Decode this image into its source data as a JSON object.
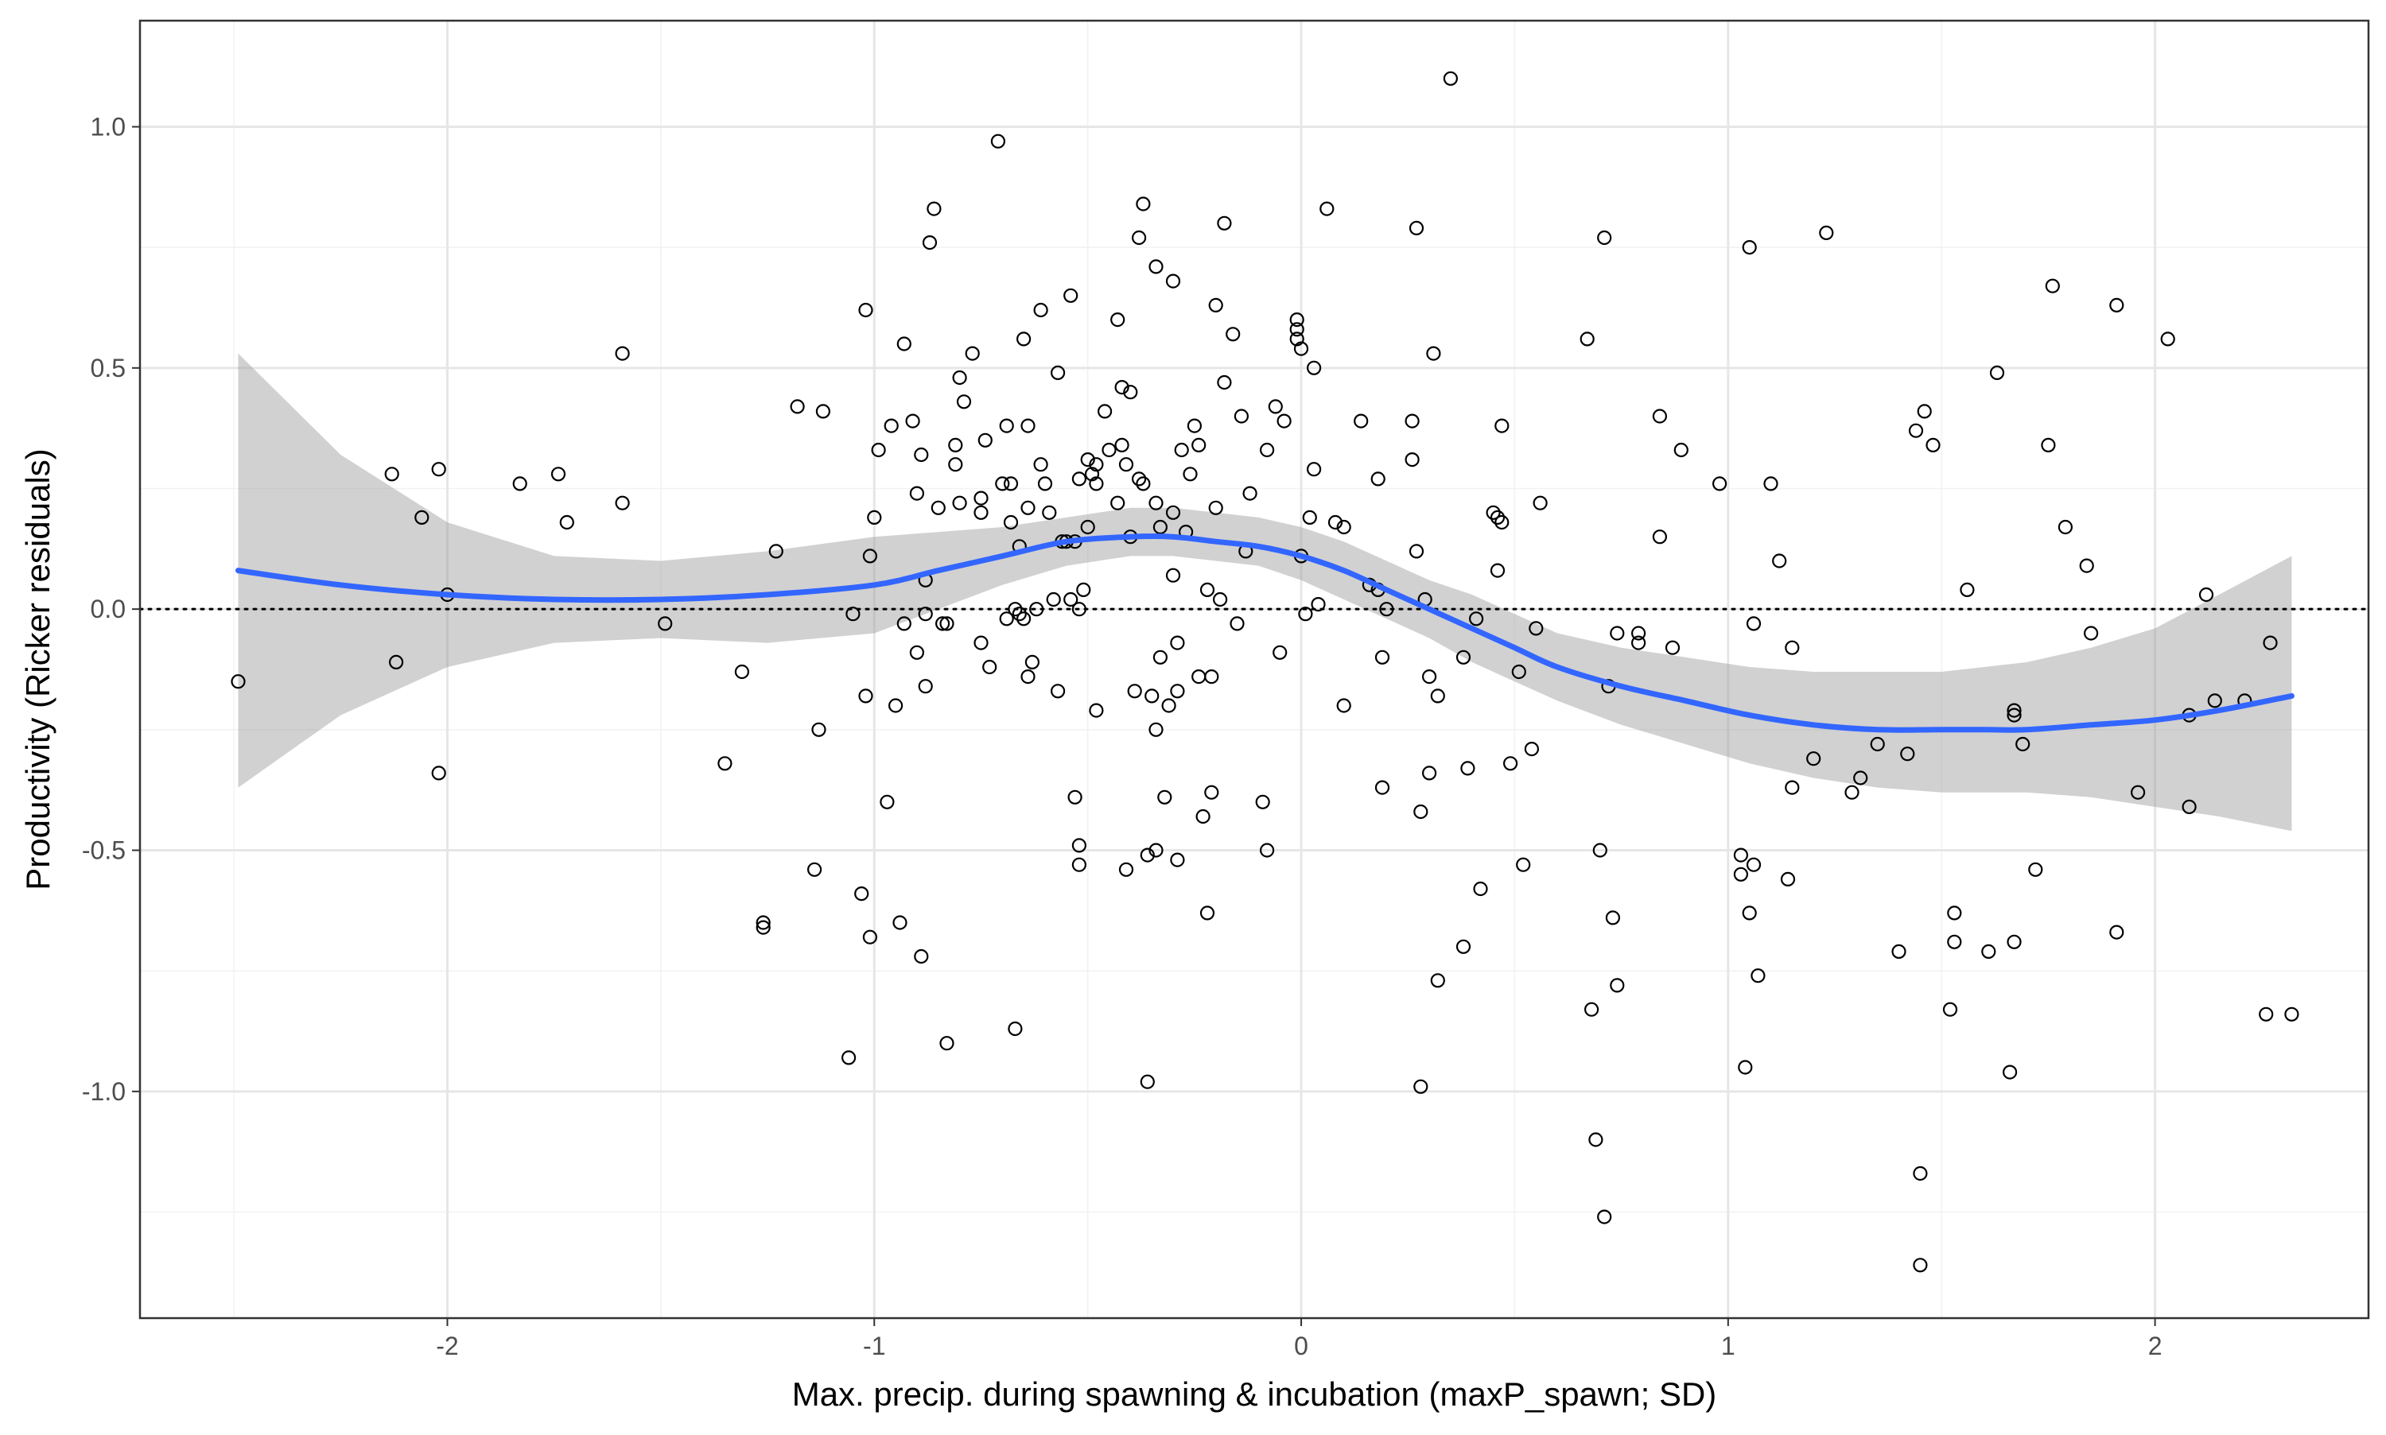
{
  "chart_data": {
    "type": "scatter",
    "title": "",
    "xlabel": "Max. precip. during spawning & incubation (maxP_spawn; SD)",
    "ylabel": "Productivity (Ricker residuals)",
    "xlim": [
      -2.72,
      2.5
    ],
    "ylim": [
      -1.47,
      1.22
    ],
    "x_ticks": [
      -2,
      -1,
      0,
      1,
      2
    ],
    "x_tick_labels": [
      "-2",
      "-1",
      "0",
      "1",
      "2"
    ],
    "y_ticks": [
      -1.0,
      -0.5,
      0.0,
      0.5,
      1.0
    ],
    "y_tick_labels": [
      "-1.0",
      "-0.5",
      "0.0",
      "0.5",
      "1.0"
    ],
    "grid": true,
    "reference_line": {
      "y": 0,
      "style": "dotted"
    },
    "colors": {
      "points": "#000000",
      "smooth_line": "#3366FF",
      "ribbon": "#999999",
      "grid": "#e6e6e6"
    },
    "points": [
      [
        -2.49,
        -0.15
      ],
      [
        -2.13,
        0.28
      ],
      [
        -2.12,
        -0.11
      ],
      [
        -2.06,
        0.19
      ],
      [
        -2.02,
        0.29
      ],
      [
        -2.02,
        -0.34
      ],
      [
        -2.0,
        0.03
      ],
      [
        -1.83,
        0.26
      ],
      [
        -1.74,
        0.28
      ],
      [
        -1.72,
        0.18
      ],
      [
        -1.59,
        0.53
      ],
      [
        -1.59,
        0.22
      ],
      [
        -1.49,
        -0.03
      ],
      [
        -1.35,
        -0.32
      ],
      [
        -1.31,
        -0.13
      ],
      [
        -1.26,
        -0.65
      ],
      [
        -1.26,
        -0.66
      ],
      [
        -1.23,
        0.12
      ],
      [
        -1.18,
        0.42
      ],
      [
        -1.14,
        -0.54
      ],
      [
        -1.13,
        -0.25
      ],
      [
        -1.12,
        0.41
      ],
      [
        -1.06,
        -0.93
      ],
      [
        -1.05,
        -0.01
      ],
      [
        -1.03,
        -0.59
      ],
      [
        -1.02,
        -0.18
      ],
      [
        -1.02,
        0.62
      ],
      [
        -1.01,
        0.11
      ],
      [
        -1.01,
        -0.68
      ],
      [
        -1.0,
        0.19
      ],
      [
        -0.99,
        0.33
      ],
      [
        -0.97,
        -0.4
      ],
      [
        -0.96,
        0.38
      ],
      [
        -0.95,
        -0.2
      ],
      [
        -0.94,
        -0.65
      ],
      [
        -0.93,
        0.55
      ],
      [
        -0.93,
        -0.03
      ],
      [
        -0.91,
        0.39
      ],
      [
        -0.9,
        0.24
      ],
      [
        -0.9,
        -0.09
      ],
      [
        -0.89,
        0.32
      ],
      [
        -0.89,
        -0.72
      ],
      [
        -0.88,
        0.06
      ],
      [
        -0.88,
        -0.16
      ],
      [
        -0.88,
        -0.01
      ],
      [
        -0.87,
        0.76
      ],
      [
        -0.86,
        0.83
      ],
      [
        -0.85,
        0.21
      ],
      [
        -0.84,
        -0.03
      ],
      [
        -0.83,
        -0.9
      ],
      [
        -0.83,
        -0.03
      ],
      [
        -0.81,
        0.3
      ],
      [
        -0.81,
        0.34
      ],
      [
        -0.8,
        0.22
      ],
      [
        -0.8,
        0.48
      ],
      [
        -0.79,
        0.43
      ],
      [
        -0.77,
        0.53
      ],
      [
        -0.75,
        0.2
      ],
      [
        -0.75,
        0.23
      ],
      [
        -0.75,
        -0.07
      ],
      [
        -0.74,
        0.35
      ],
      [
        -0.73,
        -0.12
      ],
      [
        -0.71,
        0.97
      ],
      [
        -0.7,
        0.26
      ],
      [
        -0.69,
        0.38
      ],
      [
        -0.69,
        -0.02
      ],
      [
        -0.68,
        0.18
      ],
      [
        -0.68,
        0.26
      ],
      [
        -0.67,
        -0.0
      ],
      [
        -0.67,
        -0.87
      ],
      [
        -0.66,
        -0.01
      ],
      [
        -0.66,
        0.13
      ],
      [
        -0.65,
        -0.02
      ],
      [
        -0.65,
        0.56
      ],
      [
        -0.64,
        0.21
      ],
      [
        -0.64,
        0.38
      ],
      [
        -0.64,
        -0.14
      ],
      [
        -0.63,
        -0.11
      ],
      [
        -0.62,
        0.0
      ],
      [
        -0.61,
        0.3
      ],
      [
        -0.61,
        0.62
      ],
      [
        -0.6,
        0.26
      ],
      [
        -0.59,
        0.2
      ],
      [
        -0.58,
        0.02
      ],
      [
        -0.57,
        -0.17
      ],
      [
        -0.57,
        0.49
      ],
      [
        -0.56,
        0.14
      ],
      [
        -0.55,
        0.14
      ],
      [
        -0.54,
        0.02
      ],
      [
        -0.54,
        0.65
      ],
      [
        -0.53,
        0.14
      ],
      [
        -0.53,
        -0.39
      ],
      [
        -0.52,
        0.27
      ],
      [
        -0.52,
        -0.49
      ],
      [
        -0.52,
        -0.53
      ],
      [
        -0.52,
        0.0
      ],
      [
        -0.51,
        0.04
      ],
      [
        -0.5,
        0.31
      ],
      [
        -0.5,
        0.17
      ],
      [
        -0.49,
        0.28
      ],
      [
        -0.48,
        0.26
      ],
      [
        -0.48,
        -0.21
      ],
      [
        -0.48,
        0.3
      ],
      [
        -0.46,
        0.41
      ],
      [
        -0.45,
        0.33
      ],
      [
        -0.43,
        0.22
      ],
      [
        -0.43,
        0.6
      ],
      [
        -0.42,
        0.34
      ],
      [
        -0.42,
        0.46
      ],
      [
        -0.41,
        0.3
      ],
      [
        -0.41,
        -0.54
      ],
      [
        -0.4,
        0.15
      ],
      [
        -0.4,
        0.45
      ],
      [
        -0.39,
        -0.17
      ],
      [
        -0.38,
        0.27
      ],
      [
        -0.38,
        0.77
      ],
      [
        -0.37,
        0.84
      ],
      [
        -0.37,
        0.26
      ],
      [
        -0.36,
        -0.98
      ],
      [
        -0.36,
        -0.51
      ],
      [
        -0.35,
        -0.18
      ],
      [
        -0.34,
        0.22
      ],
      [
        -0.34,
        -0.25
      ],
      [
        -0.34,
        0.71
      ],
      [
        -0.34,
        -0.5
      ],
      [
        -0.33,
        -0.1
      ],
      [
        -0.33,
        0.17
      ],
      [
        -0.32,
        -0.39
      ],
      [
        -0.31,
        -0.2
      ],
      [
        -0.3,
        0.07
      ],
      [
        -0.3,
        0.2
      ],
      [
        -0.3,
        0.68
      ],
      [
        -0.29,
        -0.07
      ],
      [
        -0.29,
        -0.17
      ],
      [
        -0.29,
        -0.52
      ],
      [
        -0.28,
        0.33
      ],
      [
        -0.27,
        0.16
      ],
      [
        -0.26,
        0.28
      ],
      [
        -0.25,
        0.38
      ],
      [
        -0.24,
        0.34
      ],
      [
        -0.24,
        -0.14
      ],
      [
        -0.23,
        -0.43
      ],
      [
        -0.22,
        -0.63
      ],
      [
        -0.22,
        0.04
      ],
      [
        -0.21,
        -0.14
      ],
      [
        -0.21,
        -0.38
      ],
      [
        -0.2,
        0.21
      ],
      [
        -0.2,
        0.63
      ],
      [
        -0.19,
        0.02
      ],
      [
        -0.18,
        0.47
      ],
      [
        -0.18,
        0.8
      ],
      [
        -0.16,
        0.57
      ],
      [
        -0.15,
        -0.03
      ],
      [
        -0.14,
        0.4
      ],
      [
        -0.13,
        0.12
      ],
      [
        -0.12,
        0.24
      ],
      [
        -0.09,
        -0.4
      ],
      [
        -0.08,
        -0.5
      ],
      [
        -0.08,
        0.33
      ],
      [
        -0.06,
        0.42
      ],
      [
        -0.05,
        -0.09
      ],
      [
        -0.04,
        0.39
      ],
      [
        -0.01,
        0.56
      ],
      [
        -0.01,
        0.6
      ],
      [
        -0.01,
        0.58
      ],
      [
        0.0,
        0.11
      ],
      [
        0.0,
        0.54
      ],
      [
        0.01,
        -0.01
      ],
      [
        0.02,
        0.19
      ],
      [
        0.03,
        0.5
      ],
      [
        0.03,
        0.29
      ],
      [
        0.04,
        0.01
      ],
      [
        0.06,
        0.83
      ],
      [
        0.08,
        0.18
      ],
      [
        0.1,
        0.17
      ],
      [
        0.1,
        -0.2
      ],
      [
        0.14,
        0.39
      ],
      [
        0.16,
        0.05
      ],
      [
        0.18,
        0.27
      ],
      [
        0.18,
        0.04
      ],
      [
        0.19,
        -0.37
      ],
      [
        0.19,
        -0.1
      ],
      [
        0.2,
        -0.0
      ],
      [
        0.26,
        0.39
      ],
      [
        0.26,
        0.31
      ],
      [
        0.27,
        0.12
      ],
      [
        0.27,
        0.79
      ],
      [
        0.28,
        -0.42
      ],
      [
        0.28,
        -0.99
      ],
      [
        0.29,
        0.02
      ],
      [
        0.3,
        -0.34
      ],
      [
        0.3,
        -0.14
      ],
      [
        0.31,
        0.53
      ],
      [
        0.32,
        -0.18
      ],
      [
        0.32,
        -0.77
      ],
      [
        0.35,
        1.1
      ],
      [
        0.38,
        -0.7
      ],
      [
        0.38,
        -0.1
      ],
      [
        0.39,
        -0.33
      ],
      [
        0.41,
        -0.02
      ],
      [
        0.42,
        -0.58
      ],
      [
        0.45,
        0.2
      ],
      [
        0.46,
        0.19
      ],
      [
        0.46,
        0.08
      ],
      [
        0.47,
        0.18
      ],
      [
        0.47,
        0.38
      ],
      [
        0.49,
        -0.32
      ],
      [
        0.51,
        -0.13
      ],
      [
        0.52,
        -0.53
      ],
      [
        0.54,
        -0.29
      ],
      [
        0.55,
        -0.04
      ],
      [
        0.56,
        0.22
      ],
      [
        0.67,
        0.56
      ],
      [
        0.68,
        -0.83
      ],
      [
        0.69,
        -1.1
      ],
      [
        0.7,
        -0.5
      ],
      [
        0.71,
        0.77
      ],
      [
        0.71,
        -1.26
      ],
      [
        0.72,
        -0.16
      ],
      [
        0.73,
        -0.64
      ],
      [
        0.74,
        -0.78
      ],
      [
        0.74,
        -0.05
      ],
      [
        0.79,
        -0.05
      ],
      [
        0.79,
        -0.07
      ],
      [
        0.84,
        0.4
      ],
      [
        0.84,
        0.15
      ],
      [
        0.87,
        -0.08
      ],
      [
        0.89,
        0.33
      ],
      [
        0.98,
        0.26
      ],
      [
        1.03,
        -0.51
      ],
      [
        1.03,
        -0.55
      ],
      [
        1.04,
        -0.95
      ],
      [
        1.05,
        -0.63
      ],
      [
        1.05,
        0.75
      ],
      [
        1.06,
        -0.53
      ],
      [
        1.06,
        -0.03
      ],
      [
        1.07,
        -0.76
      ],
      [
        1.1,
        0.26
      ],
      [
        1.12,
        0.1
      ],
      [
        1.14,
        -0.56
      ],
      [
        1.15,
        -0.08
      ],
      [
        1.15,
        -0.37
      ],
      [
        1.2,
        -0.31
      ],
      [
        1.23,
        0.78
      ],
      [
        1.29,
        -0.38
      ],
      [
        1.31,
        -0.35
      ],
      [
        1.35,
        -0.28
      ],
      [
        1.4,
        -0.71
      ],
      [
        1.42,
        -0.3
      ],
      [
        1.44,
        0.37
      ],
      [
        1.45,
        -1.17
      ],
      [
        1.45,
        -1.36
      ],
      [
        1.46,
        0.41
      ],
      [
        1.48,
        0.34
      ],
      [
        1.52,
        -0.83
      ],
      [
        1.53,
        -0.63
      ],
      [
        1.53,
        -0.69
      ],
      [
        1.56,
        0.04
      ],
      [
        1.61,
        -0.71
      ],
      [
        1.63,
        0.49
      ],
      [
        1.66,
        -0.96
      ],
      [
        1.67,
        -0.22
      ],
      [
        1.67,
        -0.21
      ],
      [
        1.67,
        -0.69
      ],
      [
        1.69,
        -0.28
      ],
      [
        1.72,
        -0.54
      ],
      [
        1.75,
        0.34
      ],
      [
        1.76,
        0.67
      ],
      [
        1.79,
        0.17
      ],
      [
        1.84,
        0.09
      ],
      [
        1.85,
        -0.05
      ],
      [
        1.91,
        0.63
      ],
      [
        1.91,
        -0.67
      ],
      [
        1.96,
        -0.38
      ],
      [
        2.03,
        0.56
      ],
      [
        2.08,
        -0.22
      ],
      [
        2.08,
        -0.41
      ],
      [
        2.12,
        0.03
      ],
      [
        2.14,
        -0.19
      ],
      [
        2.21,
        -0.19
      ],
      [
        2.26,
        -0.84
      ],
      [
        2.27,
        -0.07
      ],
      [
        2.32,
        -0.84
      ]
    ],
    "smooth": {
      "x": [
        -2.49,
        -2.25,
        -2.0,
        -1.75,
        -1.5,
        -1.25,
        -1.0,
        -0.85,
        -0.7,
        -0.55,
        -0.4,
        -0.3,
        -0.2,
        -0.1,
        0.0,
        0.1,
        0.2,
        0.3,
        0.4,
        0.5,
        0.6,
        0.75,
        0.9,
        1.05,
        1.2,
        1.35,
        1.5,
        1.6,
        1.7,
        1.85,
        2.0,
        2.15,
        2.32
      ],
      "y": [
        0.08,
        0.05,
        0.03,
        0.02,
        0.02,
        0.03,
        0.05,
        0.08,
        0.11,
        0.14,
        0.15,
        0.15,
        0.14,
        0.13,
        0.11,
        0.08,
        0.04,
        0.0,
        -0.04,
        -0.08,
        -0.12,
        -0.16,
        -0.19,
        -0.22,
        -0.24,
        -0.25,
        -0.25,
        -0.25,
        -0.25,
        -0.24,
        -0.23,
        -0.21,
        -0.18
      ],
      "lower": [
        -0.37,
        -0.22,
        -0.12,
        -0.07,
        -0.06,
        -0.07,
        -0.05,
        0.0,
        0.05,
        0.09,
        0.11,
        0.11,
        0.1,
        0.09,
        0.06,
        0.02,
        -0.02,
        -0.06,
        -0.11,
        -0.15,
        -0.19,
        -0.24,
        -0.28,
        -0.32,
        -0.35,
        -0.37,
        -0.38,
        -0.38,
        -0.38,
        -0.39,
        -0.41,
        -0.43,
        -0.46
      ],
      "upper": [
        0.53,
        0.32,
        0.18,
        0.11,
        0.1,
        0.12,
        0.15,
        0.16,
        0.17,
        0.19,
        0.21,
        0.21,
        0.2,
        0.19,
        0.17,
        0.14,
        0.1,
        0.06,
        0.03,
        -0.01,
        -0.05,
        -0.08,
        -0.1,
        -0.12,
        -0.13,
        -0.13,
        -0.13,
        -0.12,
        -0.11,
        -0.08,
        -0.04,
        0.03,
        0.11
      ]
    }
  }
}
